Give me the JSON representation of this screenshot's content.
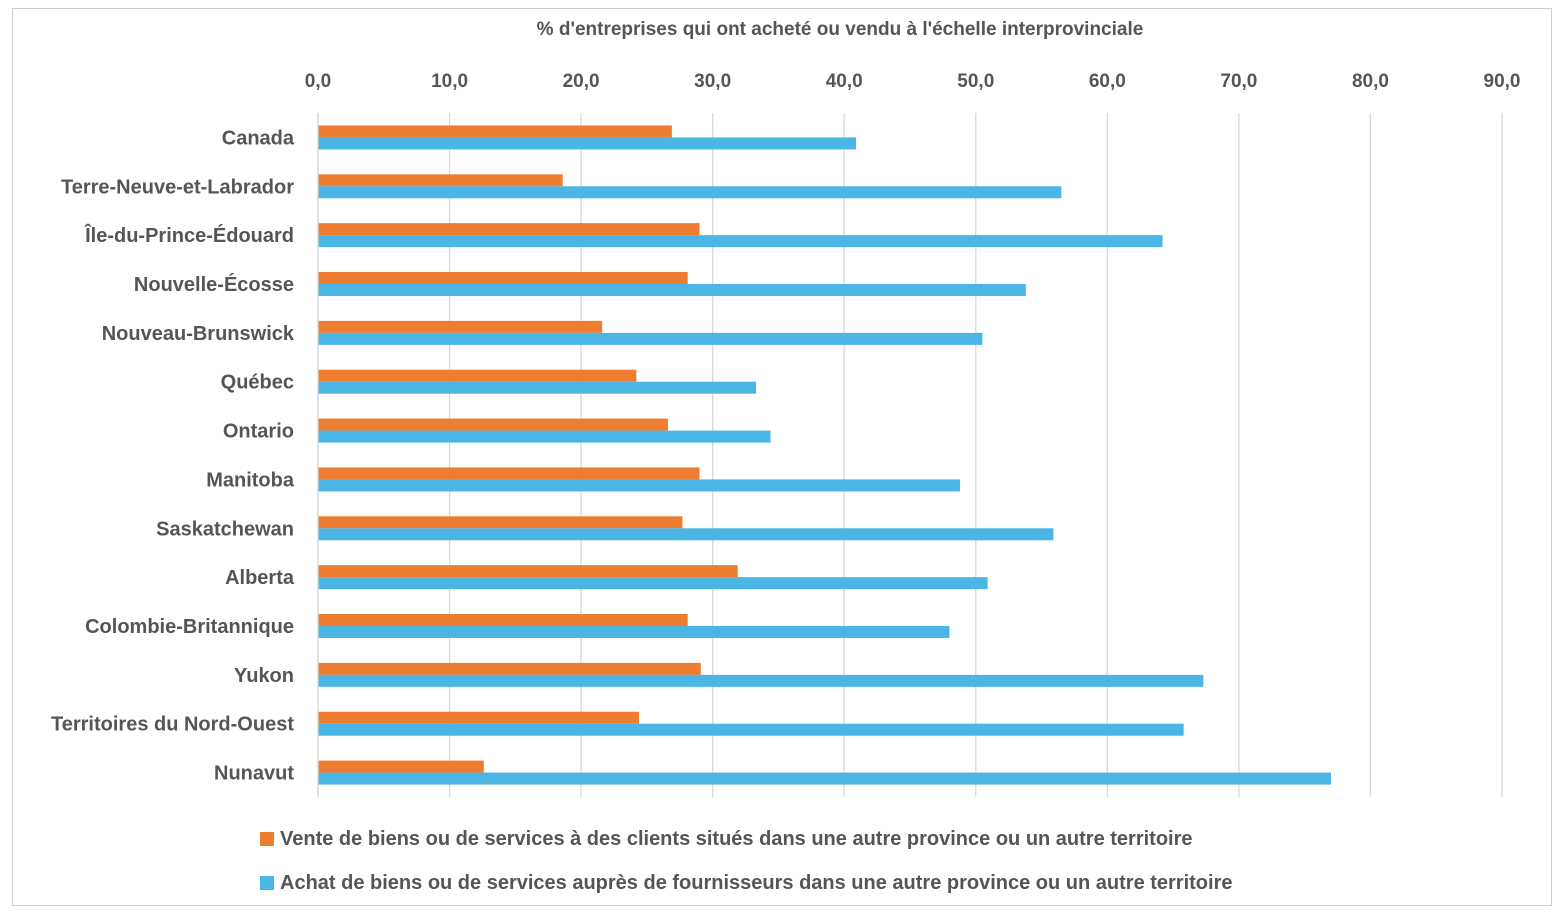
{
  "chart_data": {
    "type": "bar",
    "orientation": "horizontal",
    "title": "",
    "xlabel": "% d'entreprises qui ont acheté ou vendu à l'échelle interprovinciale",
    "xaxis_position": "top",
    "xlim": [
      0,
      90
    ],
    "xticks": [
      "0,0",
      "10,0",
      "20,0",
      "30,0",
      "40,0",
      "50,0",
      "60,0",
      "70,0",
      "80,0",
      "90,0"
    ],
    "grid": true,
    "legend_position": "bottom",
    "categories": [
      "Canada",
      "Terre-Neuve-et-Labrador",
      "Île-du-Prince-Édouard",
      "Nouvelle-Écosse",
      "Nouveau-Brunswick",
      "Québec",
      "Ontario",
      "Manitoba",
      "Saskatchewan",
      "Alberta",
      "Colombie-Britannique",
      "Yukon",
      "Territoires du Nord-Ouest",
      "Nunavut"
    ],
    "series": [
      {
        "name": "Vente de biens ou de services à des clients situés dans une autre province ou un autre territoire",
        "color": "#ED7D31",
        "values": [
          26.9,
          18.6,
          29.0,
          28.1,
          21.6,
          24.2,
          26.6,
          29.0,
          27.7,
          31.9,
          28.1,
          29.1,
          24.4,
          12.6
        ]
      },
      {
        "name": "Achat de biens ou de services auprès de fournisseurs dans une autre province ou un autre territoire",
        "color": "#4BB5E5",
        "values": [
          40.9,
          56.5,
          64.2,
          53.8,
          50.5,
          33.3,
          34.4,
          48.8,
          55.9,
          50.9,
          48.0,
          67.3,
          65.8,
          77.0
        ]
      }
    ]
  }
}
